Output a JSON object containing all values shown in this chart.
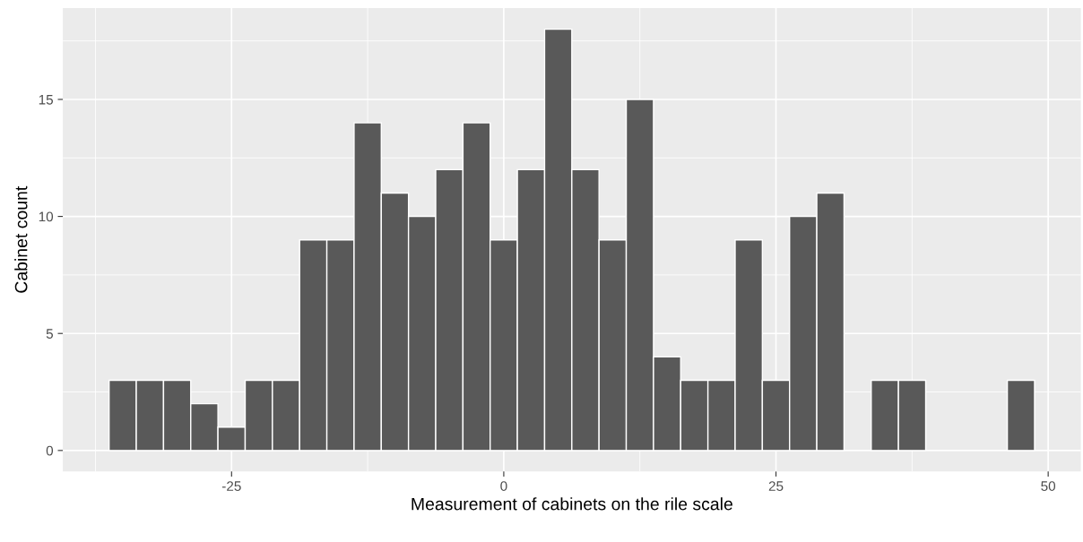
{
  "chart_data": {
    "type": "histogram",
    "xlabel": "Measurement of cabinets on the rile scale",
    "ylabel": "Cabinet count",
    "bins": [
      -36.25,
      -33.75,
      -31.25,
      -28.75,
      -26.25,
      -23.75,
      -21.25,
      -18.75,
      -16.25,
      -13.75,
      -11.25,
      -8.75,
      -6.25,
      -3.75,
      -1.25,
      1.25,
      3.75,
      6.25,
      8.75,
      11.25,
      13.75,
      16.25,
      18.75,
      21.25,
      23.75,
      26.25,
      28.75,
      31.25,
      33.75,
      36.25,
      38.75,
      41.25,
      43.75,
      46.25,
      48.75
    ],
    "values": [
      3,
      3,
      3,
      2,
      1,
      3,
      3,
      9,
      9,
      14,
      11,
      10,
      12,
      14,
      9,
      12,
      18,
      12,
      9,
      15,
      4,
      3,
      3,
      9,
      3,
      10,
      11,
      0,
      3,
      3,
      0,
      0,
      0,
      3
    ],
    "color": "#595959",
    "xlim": [
      -40.5,
      53.0
    ],
    "ylim": [
      -0.9,
      18.9
    ],
    "xticks": [
      -25,
      0,
      25,
      50
    ],
    "yticks": [
      0,
      5,
      10,
      15
    ],
    "grid": true
  }
}
